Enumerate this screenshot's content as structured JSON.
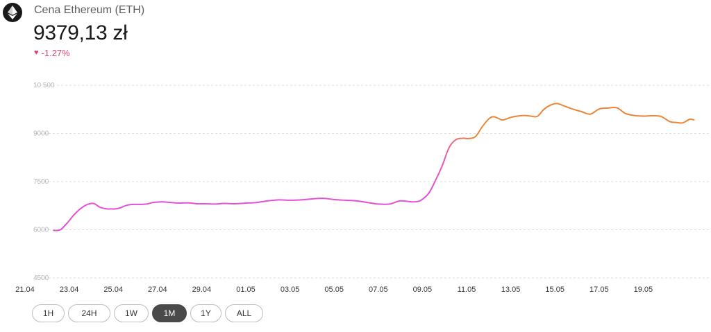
{
  "header": {
    "asset_name": "Cena Ethereum (ETH)",
    "price": "9379,13 zł",
    "change": "-1.27%",
    "change_icon": "heart-icon",
    "logo_icon": "ethereum-icon"
  },
  "colors": {
    "change_negative": "#d6456a",
    "line_start": "#e34fd6",
    "line_end": "#ec8436",
    "grid": "#dcdcdc",
    "active_button": "#4a4a4a"
  },
  "range_buttons": [
    {
      "label": "1H",
      "active": false
    },
    {
      "label": "24H",
      "active": false
    },
    {
      "label": "1W",
      "active": false
    },
    {
      "label": "1M",
      "active": true
    },
    {
      "label": "1Y",
      "active": false
    },
    {
      "label": "ALL",
      "active": false
    }
  ],
  "chart_data": {
    "type": "line",
    "x_labels": [
      "21.04",
      "23.04",
      "25.04",
      "27.04",
      "29.04",
      "01.05",
      "03.05",
      "05.05",
      "07.05",
      "09.05",
      "11.05",
      "13.05",
      "15.05",
      "17.05",
      "19.05"
    ],
    "y_ticks": [
      "4500",
      "6000",
      "7500",
      "9000",
      "10 500"
    ],
    "y_tick_values": [
      4500,
      6000,
      7500,
      9000,
      10500
    ],
    "ylim": [
      4500,
      10500
    ],
    "xlim": [
      0,
      30.3
    ],
    "grid": true,
    "series": [
      {
        "x": [
          1.3,
          1.6,
          1.9,
          2.2,
          2.5,
          2.8,
          3.1,
          3.4,
          3.7,
          3.9,
          4.1,
          4.3,
          4.6,
          4.9,
          5.2,
          5.5,
          5.8,
          6.2,
          6.6,
          7.0,
          7.4,
          7.8,
          8.2,
          8.6,
          9.0,
          9.5,
          10.0,
          10.5,
          11.0,
          11.5,
          12.0,
          12.5,
          13.0,
          13.5,
          14.0,
          14.5,
          15.0,
          15.5,
          16.0,
          16.5,
          17.0,
          17.5,
          17.8,
          18.0,
          18.3,
          18.6,
          18.9,
          19.2,
          19.5,
          19.8,
          20.1,
          20.4,
          20.7,
          21.0,
          21.2,
          21.4,
          21.6,
          21.8,
          22.0,
          22.3,
          22.6,
          22.9,
          23.2,
          23.5,
          23.8,
          24.1,
          24.4,
          24.8,
          25.2,
          25.6,
          26.0,
          26.4,
          26.8,
          27.2,
          27.6,
          28.0,
          28.4,
          28.8,
          29.2,
          29.5,
          29.8,
          30.1,
          30.3
        ],
        "y": [
          5980,
          6000,
          6200,
          6450,
          6650,
          6780,
          6820,
          6700,
          6650,
          6650,
          6650,
          6680,
          6760,
          6790,
          6790,
          6800,
          6850,
          6870,
          6850,
          6830,
          6840,
          6810,
          6810,
          6800,
          6820,
          6810,
          6830,
          6850,
          6900,
          6930,
          6920,
          6930,
          6960,
          6980,
          6940,
          6920,
          6900,
          6850,
          6800,
          6800,
          6900,
          6870,
          6880,
          6950,
          7150,
          7550,
          8000,
          8550,
          8800,
          8850,
          8840,
          8900,
          9200,
          9450,
          9520,
          9480,
          9420,
          9450,
          9500,
          9540,
          9560,
          9540,
          9530,
          9750,
          9880,
          9930,
          9860,
          9760,
          9680,
          9600,
          9760,
          9790,
          9800,
          9620,
          9560,
          9540,
          9550,
          9530,
          9370,
          9340,
          9330,
          9440,
          9420
        ]
      }
    ]
  }
}
